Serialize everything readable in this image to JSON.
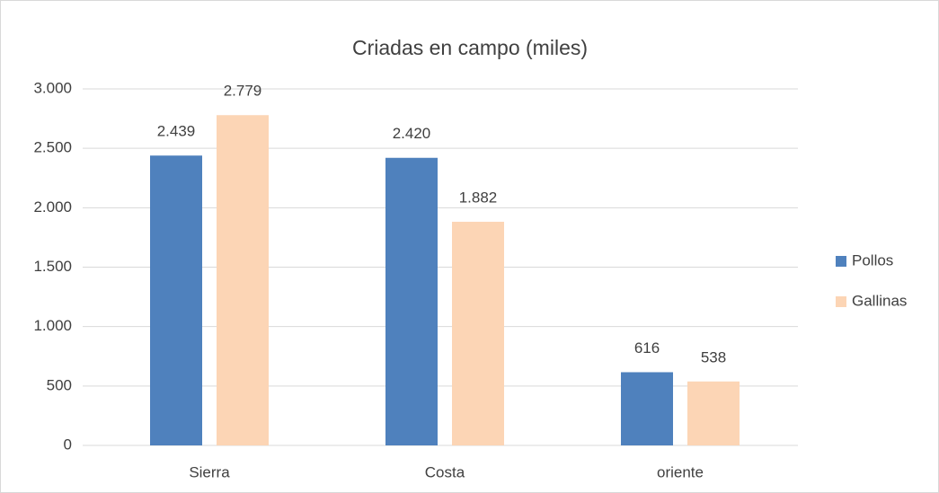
{
  "chart_data": {
    "type": "bar",
    "title": "Criadas en campo (miles)",
    "categories": [
      "Sierra",
      "Costa",
      "oriente"
    ],
    "series": [
      {
        "name": "Pollos",
        "color": "#4f81bd",
        "values": [
          2439,
          2420,
          616
        ],
        "value_labels": [
          "2.439",
          "2.420",
          "616"
        ]
      },
      {
        "name": "Gallinas",
        "color": "#fcd5b5",
        "values": [
          2779,
          1882,
          538
        ],
        "value_labels": [
          "2.779",
          "1.882",
          "538"
        ]
      }
    ],
    "ylim": [
      0,
      3000
    ],
    "yticks": [
      0,
      500,
      {
        "value": 1000,
        "label": "1.000"
      },
      {
        "value": 1500,
        "label": "1.500"
      },
      {
        "value": 2000,
        "label": "2.000"
      },
      {
        "value": 2500,
        "label": "2.500"
      },
      {
        "value": 3000,
        "label": "3.000"
      }
    ],
    "grid": true,
    "legend": "right"
  }
}
